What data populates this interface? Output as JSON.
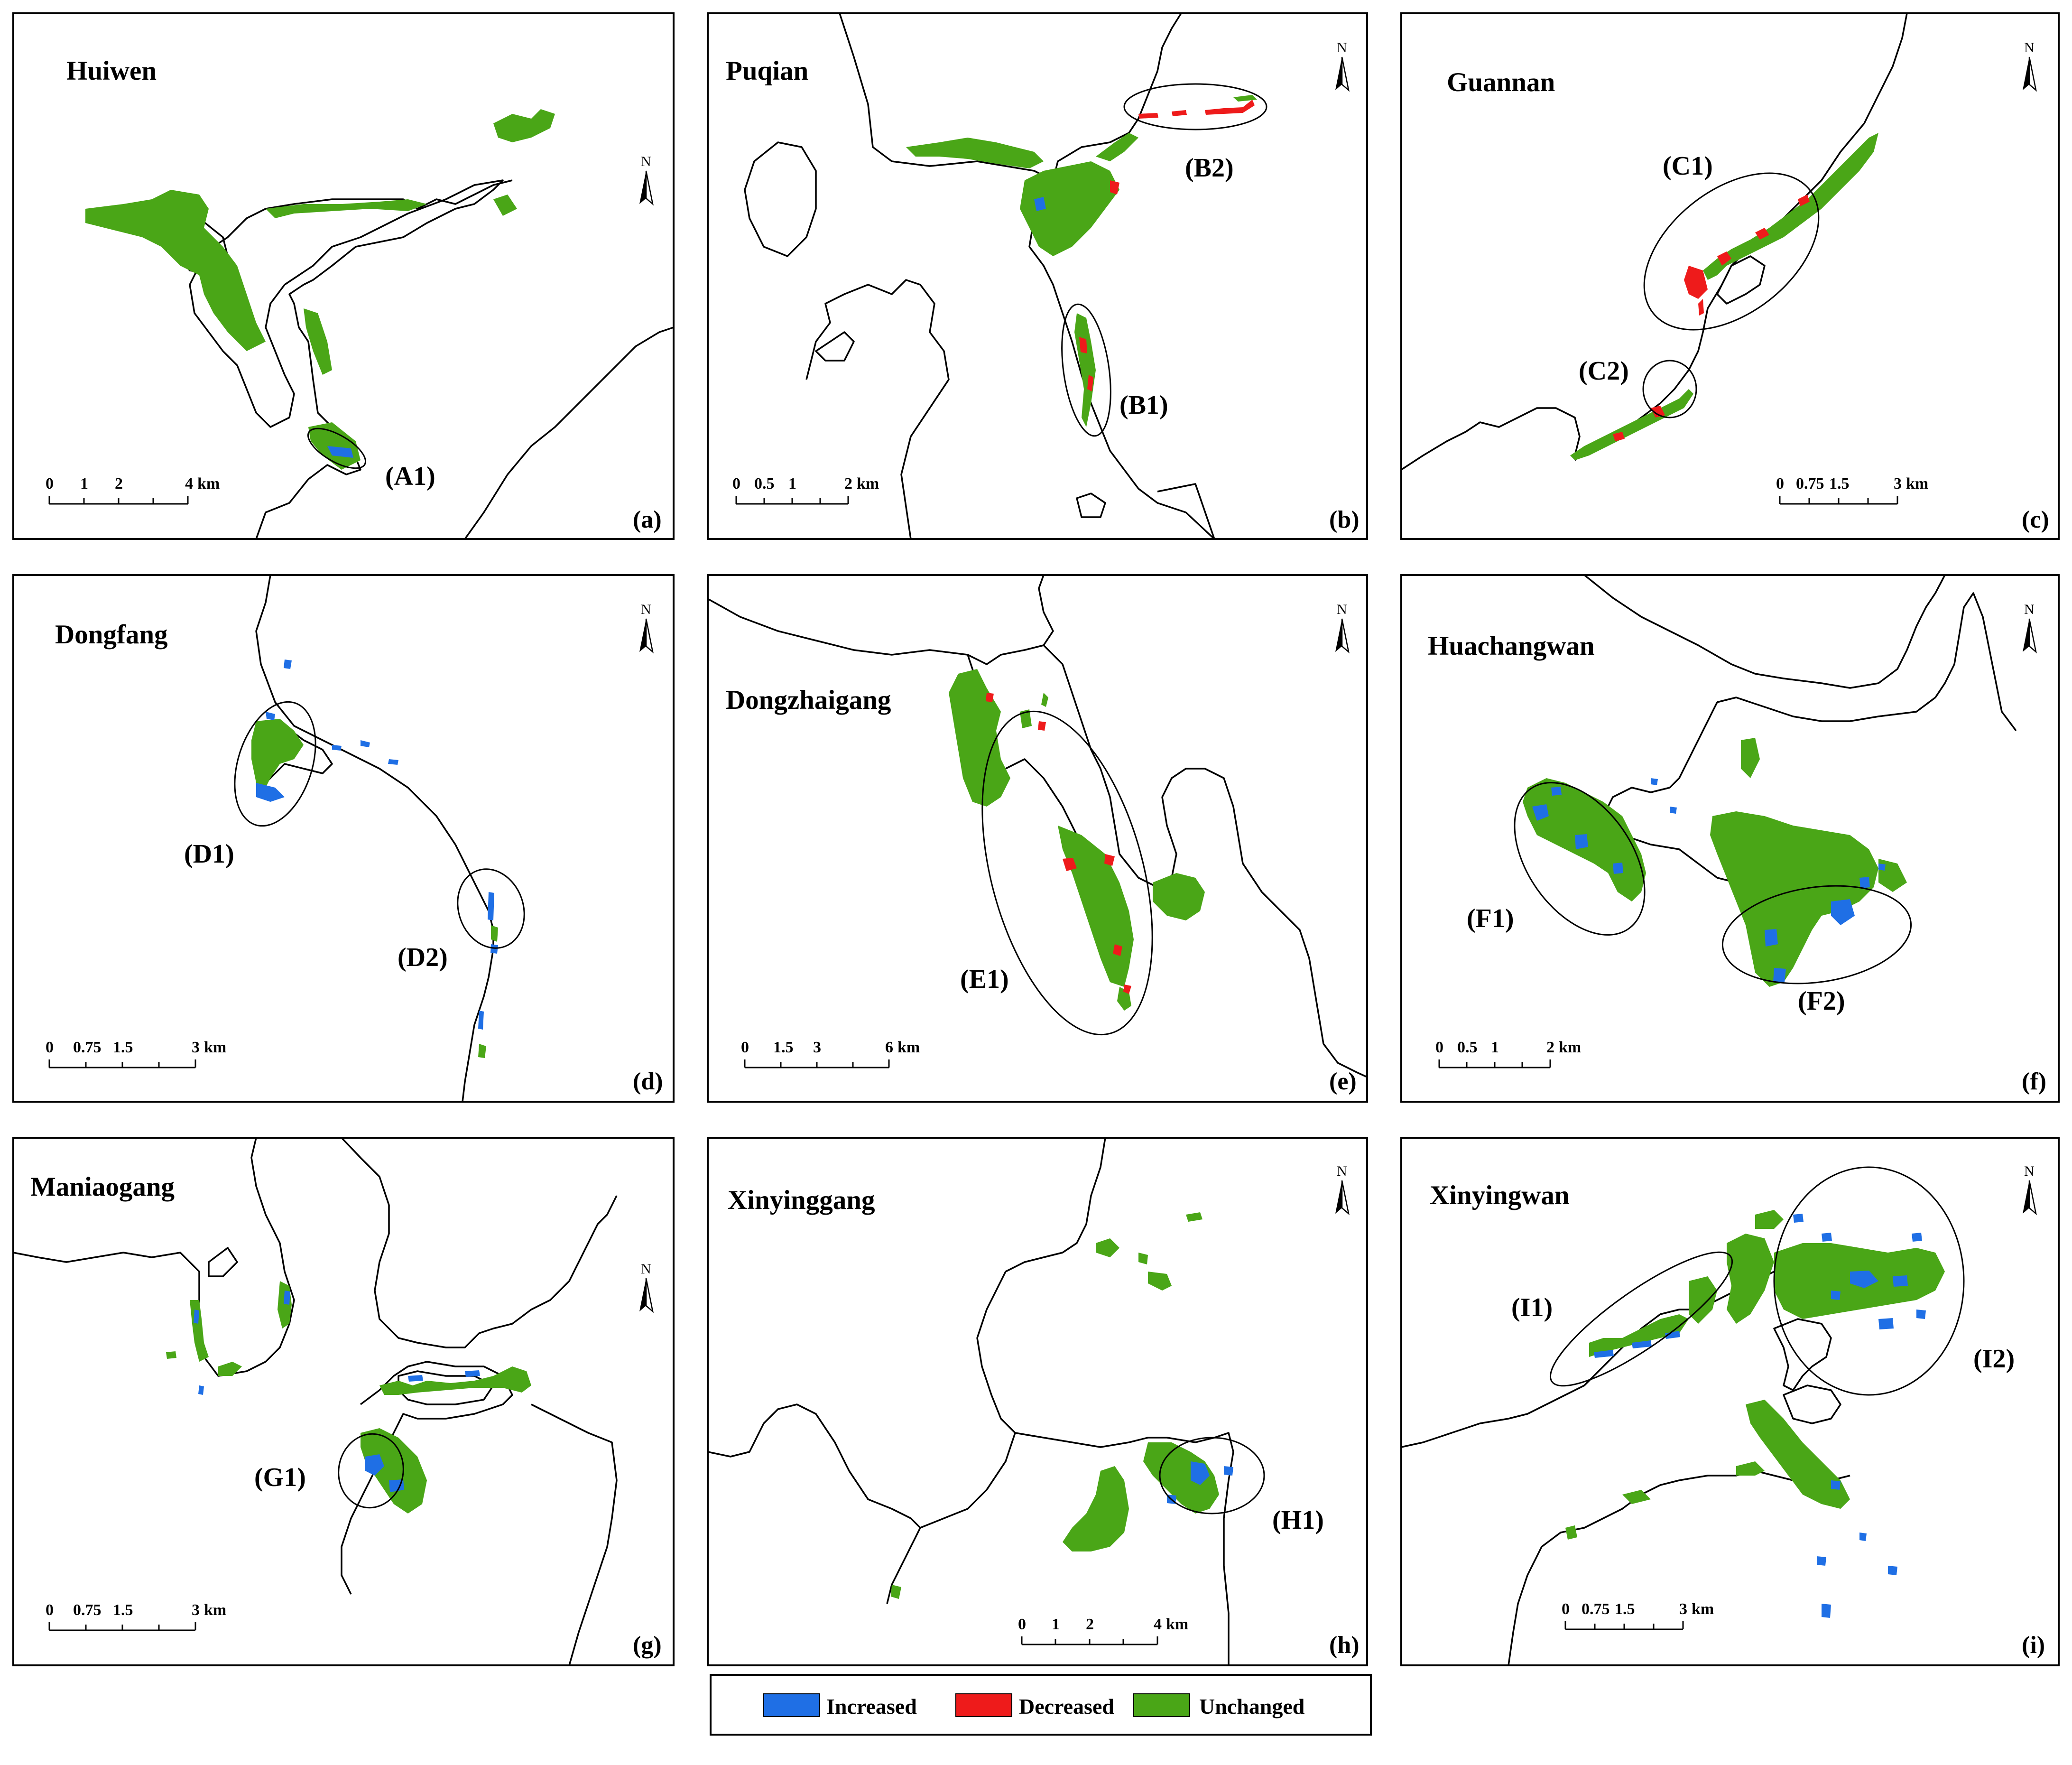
{
  "colors": {
    "increased": "#1f6fe5",
    "decreased": "#ee1b1b",
    "unchanged": "#4aa617"
  },
  "north_symbol": "north-arrow-icon",
  "north_label": "N",
  "panels": [
    {
      "id": "a",
      "name": "Huiwen",
      "label": "(a)",
      "zones": [
        "(A1)"
      ],
      "scale": {
        "ticks": [
          "0",
          "1",
          "2",
          "4"
        ],
        "unit": "km"
      }
    },
    {
      "id": "b",
      "name": "Puqian",
      "label": "(b)",
      "zones": [
        "(B1)",
        "(B2)"
      ],
      "scale": {
        "ticks": [
          "0",
          "0.5",
          "1",
          "2"
        ],
        "unit": "km"
      }
    },
    {
      "id": "c",
      "name": "Guannan",
      "label": "(c)",
      "zones": [
        "(C1)",
        "(C2)"
      ],
      "scale": {
        "ticks": [
          "0",
          "0.75",
          "1.5",
          "3"
        ],
        "unit": "km"
      }
    },
    {
      "id": "d",
      "name": "Dongfang",
      "label": "(d)",
      "zones": [
        "(D1)",
        "(D2)"
      ],
      "scale": {
        "ticks": [
          "0",
          "0.75",
          "1.5",
          "3"
        ],
        "unit": "km"
      }
    },
    {
      "id": "e",
      "name": "Dongzhaigang",
      "label": "(e)",
      "zones": [
        "(E1)"
      ],
      "scale": {
        "ticks": [
          "0",
          "1.5",
          "3",
          "6"
        ],
        "unit": "km"
      }
    },
    {
      "id": "f",
      "name": "Huachangwan",
      "label": "(f)",
      "zones": [
        "(F1)",
        "(F2)"
      ],
      "scale": {
        "ticks": [
          "0",
          "0.5",
          "1",
          "2"
        ],
        "unit": "km"
      }
    },
    {
      "id": "g",
      "name": "Maniaogang",
      "label": "(g)",
      "zones": [
        "(G1)"
      ],
      "scale": {
        "ticks": [
          "0",
          "0.75",
          "1.5",
          "3"
        ],
        "unit": "km"
      }
    },
    {
      "id": "h",
      "name": "Xinyinggang",
      "label": "(h)",
      "zones": [
        "(H1)"
      ],
      "scale": {
        "ticks": [
          "0",
          "1",
          "2",
          "4"
        ],
        "unit": "km"
      }
    },
    {
      "id": "i",
      "name": "Xinyingwan",
      "label": "(i)",
      "zones": [
        "(I1)",
        "(I2)"
      ],
      "scale": {
        "ticks": [
          "0",
          "0.75",
          "1.5",
          "3"
        ],
        "unit": "km"
      }
    }
  ],
  "legend": [
    {
      "label": "Increased",
      "color_key": "increased"
    },
    {
      "label": "Decreased",
      "color_key": "decreased"
    },
    {
      "label": "Unchanged",
      "color_key": "unchanged"
    }
  ]
}
